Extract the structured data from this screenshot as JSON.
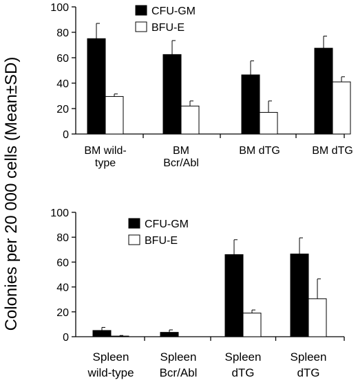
{
  "y_axis_title": "Colonies per 20 000 cells (Mean±SD)",
  "chart_data": [
    {
      "type": "bar",
      "categories": [
        [
          "BM wild-",
          "type"
        ],
        [
          "BM",
          "Bcr/Abl"
        ],
        [
          "BM dTG"
        ],
        [
          "BM dTG"
        ]
      ],
      "series": [
        {
          "name": "CFU-GM",
          "color": "#000000",
          "values": [
            75,
            62.5,
            46.5,
            67.5
          ],
          "errors": [
            12,
            11,
            11,
            9.5
          ]
        },
        {
          "name": "BFU-E",
          "color": "#ffffff",
          "values": [
            29.5,
            22,
            17,
            41
          ],
          "errors": [
            2,
            4,
            9,
            4
          ]
        }
      ],
      "yticks": [
        0,
        20,
        40,
        60,
        80,
        100
      ],
      "ylim": [
        0,
        100
      ],
      "grid": false,
      "legend": "top-center"
    },
    {
      "type": "bar",
      "categories": [
        [
          "Spleen",
          "wild-type"
        ],
        [
          "Spleen",
          "Bcr/Abl"
        ],
        [
          "Spleen",
          "dTG"
        ],
        [
          "Spleen",
          "dTG"
        ]
      ],
      "series": [
        {
          "name": "CFU-GM",
          "color": "#000000",
          "values": [
            5,
            3.5,
            66,
            66.5
          ],
          "errors": [
            2.5,
            2,
            12,
            13
          ]
        },
        {
          "name": "BFU-E",
          "color": "#ffffff",
          "values": [
            0.5,
            0,
            19,
            30.5
          ],
          "errors": [
            0.5,
            0,
            2.5,
            16
          ]
        }
      ],
      "yticks": [
        0,
        20,
        40,
        60,
        80,
        100
      ],
      "ylim": [
        0,
        100
      ],
      "grid": false,
      "legend": "top-center"
    }
  ]
}
